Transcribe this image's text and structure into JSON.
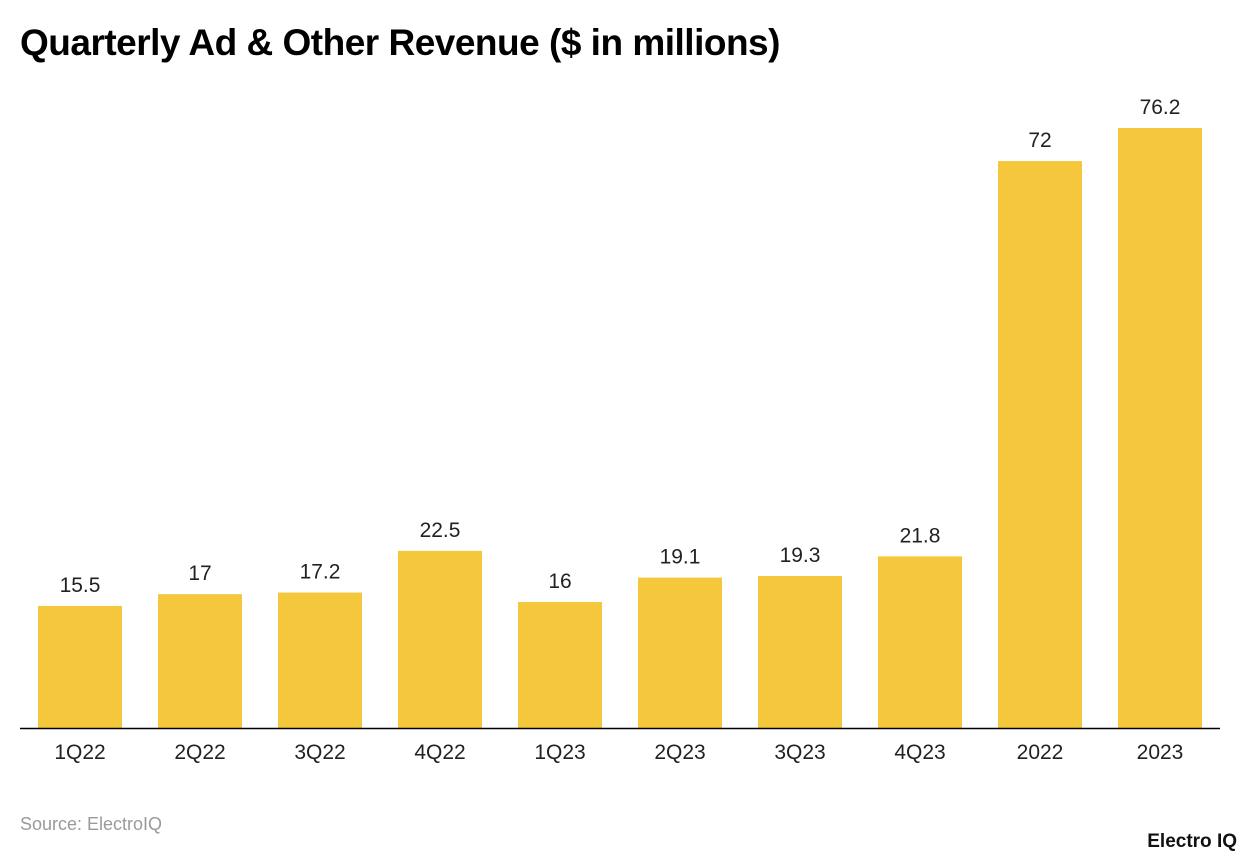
{
  "chart_data": {
    "type": "bar",
    "title": "Quarterly Ad & Other Revenue ($ in millions)",
    "categories": [
      "1Q22",
      "2Q22",
      "3Q22",
      "4Q22",
      "1Q23",
      "2Q23",
      "3Q23",
      "4Q23",
      "2022",
      "2023"
    ],
    "values": [
      15.5,
      17,
      17.2,
      22.5,
      16,
      19.1,
      19.3,
      21.8,
      72,
      76.2
    ],
    "data_labels": [
      "15.5",
      "17",
      "17.2",
      "22.5",
      "16",
      "19.1",
      "19.3",
      "21.8",
      "72",
      "76.2"
    ],
    "xlabel": "",
    "ylabel": "",
    "ylim": [
      0,
      76.2
    ],
    "grid": false,
    "bar_color": "#F5C73D",
    "axis_color": "#000000"
  },
  "footer": {
    "source": "Source: ElectroIQ",
    "logo": "Electro IQ"
  }
}
